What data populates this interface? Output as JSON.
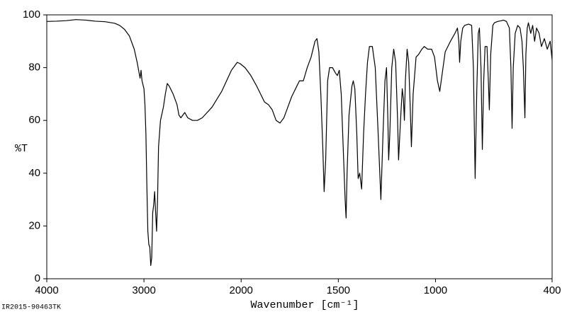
{
  "chart_data": {
    "type": "line",
    "xlabel": "Wavenumber [cm⁻¹]",
    "ylabel": "%T",
    "annotation": "IR2015-90463TK",
    "xlim": [
      4000,
      400
    ],
    "xbreak": 2000,
    "xbreak_ratio": 2,
    "ylim": [
      0,
      100
    ],
    "xticks": [
      4000,
      3000,
      2000,
      1500,
      1000,
      400
    ],
    "yticks": [
      0,
      20,
      40,
      60,
      80,
      100
    ],
    "grid": false,
    "color": "#000000",
    "x": [
      4000,
      3900,
      3800,
      3700,
      3600,
      3500,
      3400,
      3300,
      3250,
      3200,
      3150,
      3100,
      3070,
      3050,
      3040,
      3030,
      3020,
      3000,
      2990,
      2980,
      2970,
      2960,
      2950,
      2940,
      2930,
      2920,
      2910,
      2900,
      2890,
      2880,
      2870,
      2860,
      2850,
      2830,
      2800,
      2780,
      2760,
      2740,
      2700,
      2660,
      2640,
      2620,
      2600,
      2580,
      2550,
      2500,
      2450,
      2400,
      2350,
      2300,
      2250,
      2200,
      2150,
      2100,
      2060,
      2040,
      2010,
      1980,
      1950,
      1920,
      1900,
      1880,
      1860,
      1840,
      1820,
      1800,
      1780,
      1760,
      1740,
      1720,
      1700,
      1680,
      1660,
      1640,
      1620,
      1610,
      1600,
      1590,
      1580,
      1573,
      1565,
      1555,
      1545,
      1530,
      1515,
      1505,
      1495,
      1485,
      1475,
      1465,
      1460,
      1455,
      1445,
      1430,
      1423,
      1415,
      1405,
      1398,
      1390,
      1380,
      1370,
      1360,
      1350,
      1340,
      1325,
      1310,
      1295,
      1281,
      1270,
      1260,
      1252,
      1245,
      1241,
      1235,
      1225,
      1215,
      1205,
      1195,
      1190,
      1180,
      1171,
      1165,
      1160,
      1155,
      1146,
      1138,
      1130,
      1124,
      1115,
      1100,
      1087,
      1070,
      1058,
      1040,
      1020,
      1005,
      990,
      978,
      965,
      950,
      923,
      900,
      887,
      880,
      876,
      870,
      860,
      850,
      830,
      814,
      805,
      796,
      788,
      780,
      774,
      766,
      759,
      752,
      745,
      735,
      728,
      723,
      716,
      705,
      697,
      680,
      660,
      650,
      635,
      620,
      612,
      606,
      600,
      590,
      577,
      565,
      555,
      548,
      540,
      535,
      528,
      522,
      510,
      500,
      490,
      480,
      467,
      455,
      440,
      425,
      410,
      400
    ],
    "values": [
      97.5,
      97.6,
      97.8,
      98.2,
      98,
      97.6,
      97.4,
      96.8,
      96,
      94.5,
      92,
      87,
      82,
      78,
      76,
      79,
      75,
      72,
      66,
      55,
      35,
      18,
      13,
      12,
      5,
      8,
      25,
      28,
      33,
      25,
      18,
      30,
      50,
      60,
      65,
      70,
      74,
      73,
      70,
      66,
      62,
      61,
      62,
      63,
      61,
      60,
      60,
      61,
      63,
      65,
      68,
      71,
      75,
      79,
      81,
      82,
      81.5,
      80,
      77,
      73,
      70,
      67,
      66,
      64,
      60,
      59,
      61,
      65,
      69,
      72,
      75,
      75,
      80,
      84,
      90,
      91,
      86,
      70,
      50,
      33,
      45,
      75,
      80,
      80,
      78,
      77,
      79,
      70,
      50,
      30,
      23,
      40,
      62,
      73,
      75,
      72,
      55,
      38,
      40,
      34,
      55,
      70,
      82,
      88,
      88,
      80,
      55,
      30,
      55,
      75,
      80,
      60,
      45,
      55,
      80,
      87,
      82,
      60,
      45,
      60,
      72,
      68,
      60,
      75,
      87,
      82,
      65,
      50,
      70,
      84,
      85,
      87,
      88,
      87,
      87,
      84,
      75,
      71,
      78,
      86,
      90,
      93,
      95,
      90,
      82,
      90,
      95,
      96,
      96.5,
      96,
      80,
      38,
      70,
      93,
      95,
      80,
      49,
      75,
      88,
      88,
      75,
      64,
      85,
      96,
      97,
      97.5,
      97.8,
      98,
      97.5,
      95,
      80,
      57,
      80,
      93,
      96,
      95,
      90,
      80,
      61,
      85,
      95,
      97,
      93,
      96,
      90,
      95,
      93,
      88,
      91,
      87,
      90,
      83
    ]
  }
}
